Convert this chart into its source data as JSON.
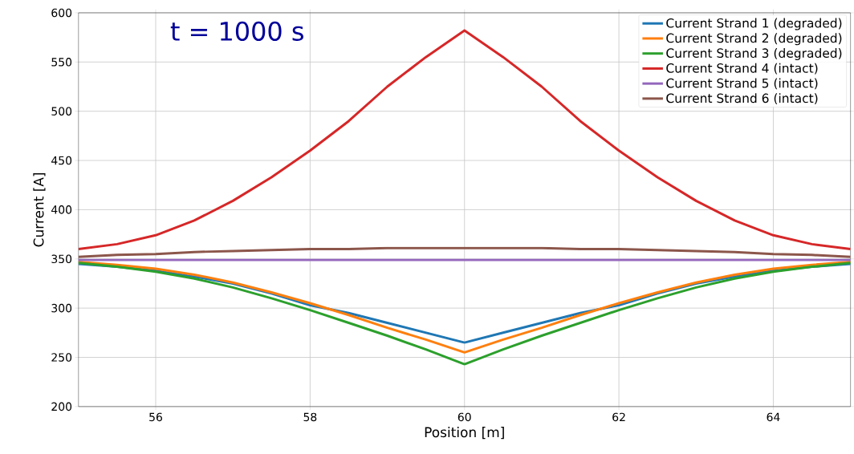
{
  "chart_data": {
    "type": "line",
    "xlabel": "Position [m]",
    "ylabel": "Current [A]",
    "annotations": [
      "t = 1000 s"
    ],
    "x": [
      55,
      55.5,
      56,
      56.5,
      57,
      57.5,
      58,
      58.5,
      59,
      59.5,
      60,
      60.5,
      61,
      61.5,
      62,
      62.5,
      63,
      63.5,
      64,
      64.5,
      65
    ],
    "series": [
      {
        "name": "Current Strand 1 (degraded)",
        "color": "#1f77b4",
        "values": [
          345,
          342,
          338,
          332,
          325,
          315,
          303,
          295,
          285,
          275,
          265,
          275,
          285,
          295,
          303,
          315,
          325,
          332,
          338,
          342,
          345
        ]
      },
      {
        "name": "Current Strand 2 (degraded)",
        "color": "#ff7f0e",
        "values": [
          347,
          344,
          340,
          334,
          326,
          316,
          305,
          293,
          280,
          268,
          255,
          268,
          280,
          293,
          305,
          316,
          326,
          334,
          340,
          344,
          347
        ]
      },
      {
        "name": "Current Strand 3 (degraded)",
        "color": "#2ca02c",
        "values": [
          346,
          342,
          337,
          330,
          321,
          310,
          298,
          285,
          272,
          258,
          243,
          258,
          272,
          285,
          298,
          310,
          321,
          330,
          337,
          342,
          346
        ]
      },
      {
        "name": "Current Strand 4 (intact)",
        "color": "#d62728",
        "values": [
          360,
          365,
          374,
          389,
          409,
          433,
          460,
          490,
          525,
          555,
          582,
          555,
          525,
          490,
          460,
          433,
          409,
          389,
          374,
          365,
          360
        ]
      },
      {
        "name": "Current Strand 5 (intact)",
        "color": "#9467bd",
        "values": [
          349,
          349,
          349,
          349,
          349,
          349,
          349,
          349,
          349,
          349,
          349,
          349,
          349,
          349,
          349,
          349,
          349,
          349,
          349,
          349,
          349
        ]
      },
      {
        "name": "Current Strand 6 (intact)",
        "color": "#8c564b",
        "values": [
          352,
          354,
          355,
          357,
          358,
          359,
          360,
          360,
          361,
          361,
          361,
          361,
          361,
          360,
          360,
          359,
          358,
          357,
          355,
          354,
          352
        ]
      }
    ],
    "xlim": [
      55,
      65
    ],
    "ylim": [
      200,
      600
    ],
    "xticks": [
      56,
      58,
      60,
      62,
      64
    ],
    "yticks": [
      200,
      250,
      300,
      350,
      400,
      450,
      500,
      550,
      600
    ],
    "grid": true,
    "legend": "top right",
    "marker": "none",
    "line_style": "solid"
  }
}
